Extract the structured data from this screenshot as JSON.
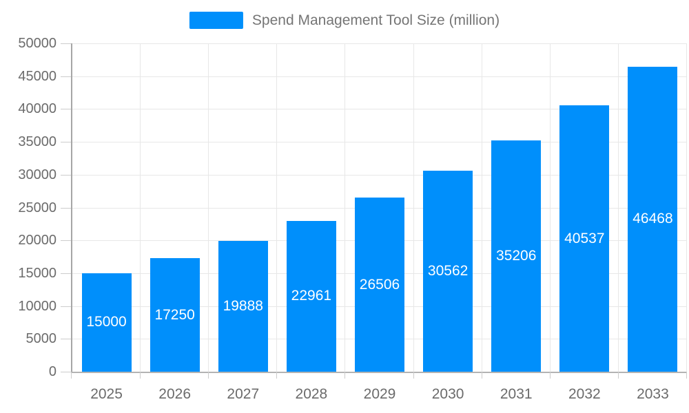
{
  "legend": {
    "label": "Spend Management Tool Size (million)"
  },
  "chart_data": {
    "type": "bar",
    "title": "Spend Management Tool Size (million)",
    "categories": [
      "2025",
      "2026",
      "2027",
      "2028",
      "2029",
      "2030",
      "2031",
      "2032",
      "2033"
    ],
    "series": [
      {
        "name": "Spend Management Tool Size (million)",
        "values": [
          15000,
          17250,
          19888,
          22961,
          26506,
          30562,
          35206,
          40537,
          46468
        ]
      }
    ],
    "data_labels": [
      "15000",
      "17250",
      "19888",
      "22961",
      "26506",
      "30562",
      "35206",
      "40537",
      "46468"
    ],
    "xlabel": "",
    "ylabel": "",
    "ylim": [
      0,
      50000
    ],
    "ytick_step": 5000,
    "yticklabels": [
      "0",
      "5000",
      "10000",
      "15000",
      "20000",
      "25000",
      "30000",
      "35000",
      "40000",
      "45000",
      "50000"
    ],
    "grid": true,
    "legend_position": "top",
    "colors": {
      "bar": "#008FFB",
      "datalabel_text": "#ffffff",
      "axis_label_text": "#6b6b6b",
      "legend_text": "#757575",
      "gridline": "#e7e7e7",
      "yaxis_line": "#a6a6a6",
      "xaxis_line": "#b3b3b3",
      "tick": "#cccccc"
    }
  }
}
